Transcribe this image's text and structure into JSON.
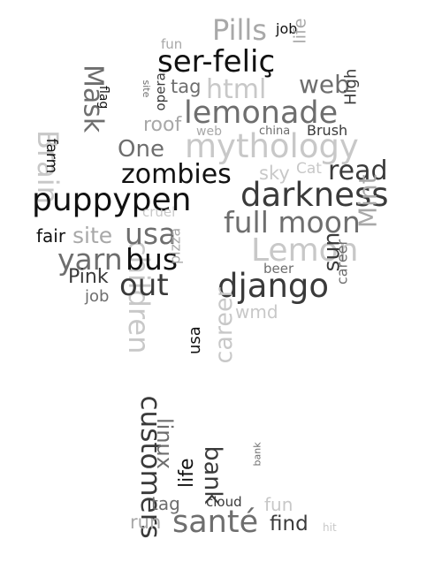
{
  "palette": {
    "black": "#111111",
    "dark": "#3a3a3a",
    "mid": "#6e6e6e",
    "light": "#a8a8a8",
    "faint": "#c8c8c8"
  },
  "words": [
    {
      "text": "Pills",
      "tone": "light"
    },
    {
      "text": "job",
      "tone": "black"
    },
    {
      "text": "fun",
      "tone": "light"
    },
    {
      "text": "life",
      "tone": "light"
    },
    {
      "text": "Mask",
      "tone": "mid"
    },
    {
      "text": "ser-feliç",
      "tone": "black"
    },
    {
      "text": "site",
      "tone": "mid"
    },
    {
      "text": "flag",
      "tone": "black"
    },
    {
      "text": "tag",
      "tone": "mid"
    },
    {
      "text": "html",
      "tone": "faint"
    },
    {
      "text": "web",
      "tone": "mid"
    },
    {
      "text": "roof",
      "tone": "light"
    },
    {
      "text": "opera",
      "tone": "dark"
    },
    {
      "text": "lemonade",
      "tone": "mid"
    },
    {
      "text": "High",
      "tone": "dark"
    },
    {
      "text": "Brain",
      "tone": "faint"
    },
    {
      "text": "farm",
      "tone": "black"
    },
    {
      "text": "web",
      "tone": "light"
    },
    {
      "text": "china",
      "tone": "mid"
    },
    {
      "text": "Brush",
      "tone": "dark"
    },
    {
      "text": "One",
      "tone": "mid"
    },
    {
      "text": "mythology",
      "tone": "faint"
    },
    {
      "text": "zombies",
      "tone": "black"
    },
    {
      "text": "sky",
      "tone": "faint"
    },
    {
      "text": "Cat",
      "tone": "faint"
    },
    {
      "text": "read",
      "tone": "dark"
    },
    {
      "text": "puppypen",
      "tone": "black"
    },
    {
      "text": "darkness",
      "tone": "dark"
    },
    {
      "text": "children",
      "tone": "faint"
    },
    {
      "text": "cruel",
      "tone": "faint"
    },
    {
      "text": "full moon",
      "tone": "mid"
    },
    {
      "text": "Mint",
      "tone": "light"
    },
    {
      "text": "fair",
      "tone": "black"
    },
    {
      "text": "site",
      "tone": "light"
    },
    {
      "text": "usa",
      "tone": "mid"
    },
    {
      "text": "Lemon",
      "tone": "faint"
    },
    {
      "text": "yarn",
      "tone": "mid"
    },
    {
      "text": "bus",
      "tone": "black"
    },
    {
      "text": "pizza",
      "tone": "light"
    },
    {
      "text": "beer",
      "tone": "mid"
    },
    {
      "text": "sun",
      "tone": "dark"
    },
    {
      "text": "career",
      "tone": "mid"
    },
    {
      "text": "Pink",
      "tone": "dark"
    },
    {
      "text": "out",
      "tone": "dark"
    },
    {
      "text": "django",
      "tone": "dark"
    },
    {
      "text": "job",
      "tone": "mid"
    },
    {
      "text": "wmd",
      "tone": "faint"
    },
    {
      "text": "usa",
      "tone": "black"
    },
    {
      "text": "customers",
      "tone": "dark"
    },
    {
      "text": "career",
      "tone": "faint"
    },
    {
      "text": "linux",
      "tone": "mid"
    },
    {
      "text": "bank",
      "tone": "dark"
    },
    {
      "text": "bank",
      "tone": "mid"
    },
    {
      "text": "life",
      "tone": "black"
    },
    {
      "text": "tag",
      "tone": "mid"
    },
    {
      "text": "cloud",
      "tone": "dark"
    },
    {
      "text": "fun",
      "tone": "faint"
    },
    {
      "text": "run",
      "tone": "light"
    },
    {
      "text": "santé",
      "tone": "mid"
    },
    {
      "text": "find",
      "tone": "dark"
    },
    {
      "text": "hit",
      "tone": "faint"
    }
  ]
}
